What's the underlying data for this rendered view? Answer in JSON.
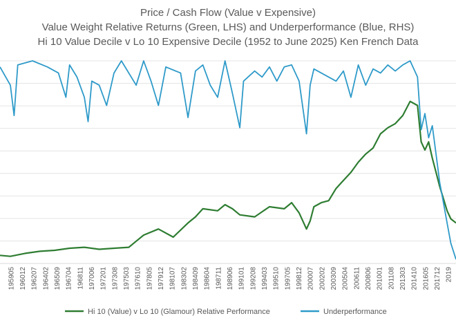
{
  "chart_data": {
    "type": "line",
    "title_lines": [
      "Price / Cash Flow (Value v Expensive)",
      "Value Weight Relative Returns (Green, LHS) and Underperformance (Blue, RHS)",
      "Hi 10 Value Decile v Lo 10 Expensive Decile (1952 to June 2025) Ken French Data"
    ],
    "x_tick_labels": [
      "195905",
      "196012",
      "196207",
      "196402",
      "196509",
      "196704",
      "196811",
      "197006",
      "197201",
      "197308",
      "197503",
      "197610",
      "197805",
      "197912",
      "198107",
      "198302",
      "198409",
      "198604",
      "198711",
      "198906",
      "199101",
      "199208",
      "199403",
      "199510",
      "199705",
      "199812",
      "200007",
      "200202",
      "200309",
      "200504",
      "200611",
      "200806",
      "201001",
      "201108",
      "201303",
      "201410",
      "201605",
      "201712",
      "2019"
    ],
    "x_range": [
      1958.6,
      2020.2
    ],
    "series": [
      {
        "name": "Hi 10 (Value) v Lo 10 (Glamour) Relative Performance",
        "axis": "left",
        "color": "#2E7D32",
        "ylim": [
          0,
          100
        ],
        "points": [
          [
            1958.6,
            4
          ],
          [
            1960,
            3.5
          ],
          [
            1962,
            5
          ],
          [
            1964,
            6
          ],
          [
            1966,
            6.5
          ],
          [
            1968,
            7.5
          ],
          [
            1970,
            8
          ],
          [
            1972,
            7
          ],
          [
            1974,
            7.5
          ],
          [
            1976,
            8
          ],
          [
            1977,
            11
          ],
          [
            1978,
            14
          ],
          [
            1980,
            17
          ],
          [
            1982,
            13
          ],
          [
            1984,
            20
          ],
          [
            1985,
            23
          ],
          [
            1986,
            27
          ],
          [
            1988,
            26
          ],
          [
            1989,
            29
          ],
          [
            1990,
            27
          ],
          [
            1991,
            24
          ],
          [
            1993,
            23
          ],
          [
            1995,
            28
          ],
          [
            1997,
            27
          ],
          [
            1998,
            30
          ],
          [
            1999,
            25
          ],
          [
            2000,
            17
          ],
          [
            2000.5,
            21
          ],
          [
            2001,
            28
          ],
          [
            2002,
            30
          ],
          [
            2003,
            31
          ],
          [
            2004,
            37
          ],
          [
            2005,
            41
          ],
          [
            2006,
            45
          ],
          [
            2007,
            50
          ],
          [
            2008,
            54
          ],
          [
            2009,
            57
          ],
          [
            2010,
            64
          ],
          [
            2011,
            67
          ],
          [
            2012,
            69
          ],
          [
            2013,
            73
          ],
          [
            2014,
            80
          ],
          [
            2015,
            78
          ],
          [
            2015.5,
            60
          ],
          [
            2016,
            56
          ],
          [
            2016.5,
            60
          ],
          [
            2017,
            52
          ],
          [
            2017.5,
            45
          ],
          [
            2018,
            38
          ],
          [
            2018.5,
            32
          ],
          [
            2019,
            26
          ],
          [
            2019.5,
            22
          ],
          [
            2020.2,
            20
          ]
        ]
      },
      {
        "name": "Underperformance",
        "axis": "right",
        "color": "#2E9AC9",
        "ylim": [
          -1,
          0
        ],
        "points": [
          [
            1958.6,
            -0.03
          ],
          [
            1960,
            -0.12
          ],
          [
            1960.5,
            -0.27
          ],
          [
            1961,
            -0.02
          ],
          [
            1963,
            0
          ],
          [
            1965,
            -0.03
          ],
          [
            1966.5,
            -0.06
          ],
          [
            1967.5,
            -0.18
          ],
          [
            1968,
            -0.02
          ],
          [
            1969,
            -0.08
          ],
          [
            1970,
            -0.18
          ],
          [
            1970.5,
            -0.3
          ],
          [
            1971,
            -0.1
          ],
          [
            1972,
            -0.12
          ],
          [
            1973,
            -0.22
          ],
          [
            1974,
            -0.06
          ],
          [
            1975,
            0
          ],
          [
            1977,
            -0.12
          ],
          [
            1978,
            0
          ],
          [
            1979,
            -0.1
          ],
          [
            1980,
            -0.22
          ],
          [
            1981,
            -0.03
          ],
          [
            1983,
            -0.06
          ],
          [
            1984,
            -0.28
          ],
          [
            1985,
            -0.05
          ],
          [
            1986,
            -0.02
          ],
          [
            1987,
            -0.12
          ],
          [
            1988,
            -0.18
          ],
          [
            1989,
            0
          ],
          [
            1990,
            -0.16
          ],
          [
            1991,
            -0.33
          ],
          [
            1991.5,
            -0.1
          ],
          [
            1993,
            -0.05
          ],
          [
            1994,
            -0.08
          ],
          [
            1995,
            -0.03
          ],
          [
            1996,
            -0.1
          ],
          [
            1997,
            -0.03
          ],
          [
            1998,
            -0.02
          ],
          [
            1999,
            -0.1
          ],
          [
            2000,
            -0.36
          ],
          [
            2000.5,
            -0.12
          ],
          [
            2001,
            -0.04
          ],
          [
            2002,
            -0.06
          ],
          [
            2004,
            -0.1
          ],
          [
            2005,
            -0.05
          ],
          [
            2006,
            -0.18
          ],
          [
            2007,
            -0.02
          ],
          [
            2008,
            -0.12
          ],
          [
            2009,
            -0.04
          ],
          [
            2010,
            -0.06
          ],
          [
            2011,
            -0.02
          ],
          [
            2012,
            -0.05
          ],
          [
            2013,
            -0.02
          ],
          [
            2014,
            0
          ],
          [
            2015,
            -0.08
          ],
          [
            2015.5,
            -0.34
          ],
          [
            2016,
            -0.26
          ],
          [
            2016.5,
            -0.38
          ],
          [
            2017,
            -0.32
          ],
          [
            2017.5,
            -0.46
          ],
          [
            2018,
            -0.6
          ],
          [
            2018.5,
            -0.7
          ],
          [
            2019,
            -0.8
          ],
          [
            2019.5,
            -0.9
          ],
          [
            2020.2,
            -0.98
          ]
        ]
      }
    ],
    "grid": true,
    "legend_position": "bottom"
  }
}
